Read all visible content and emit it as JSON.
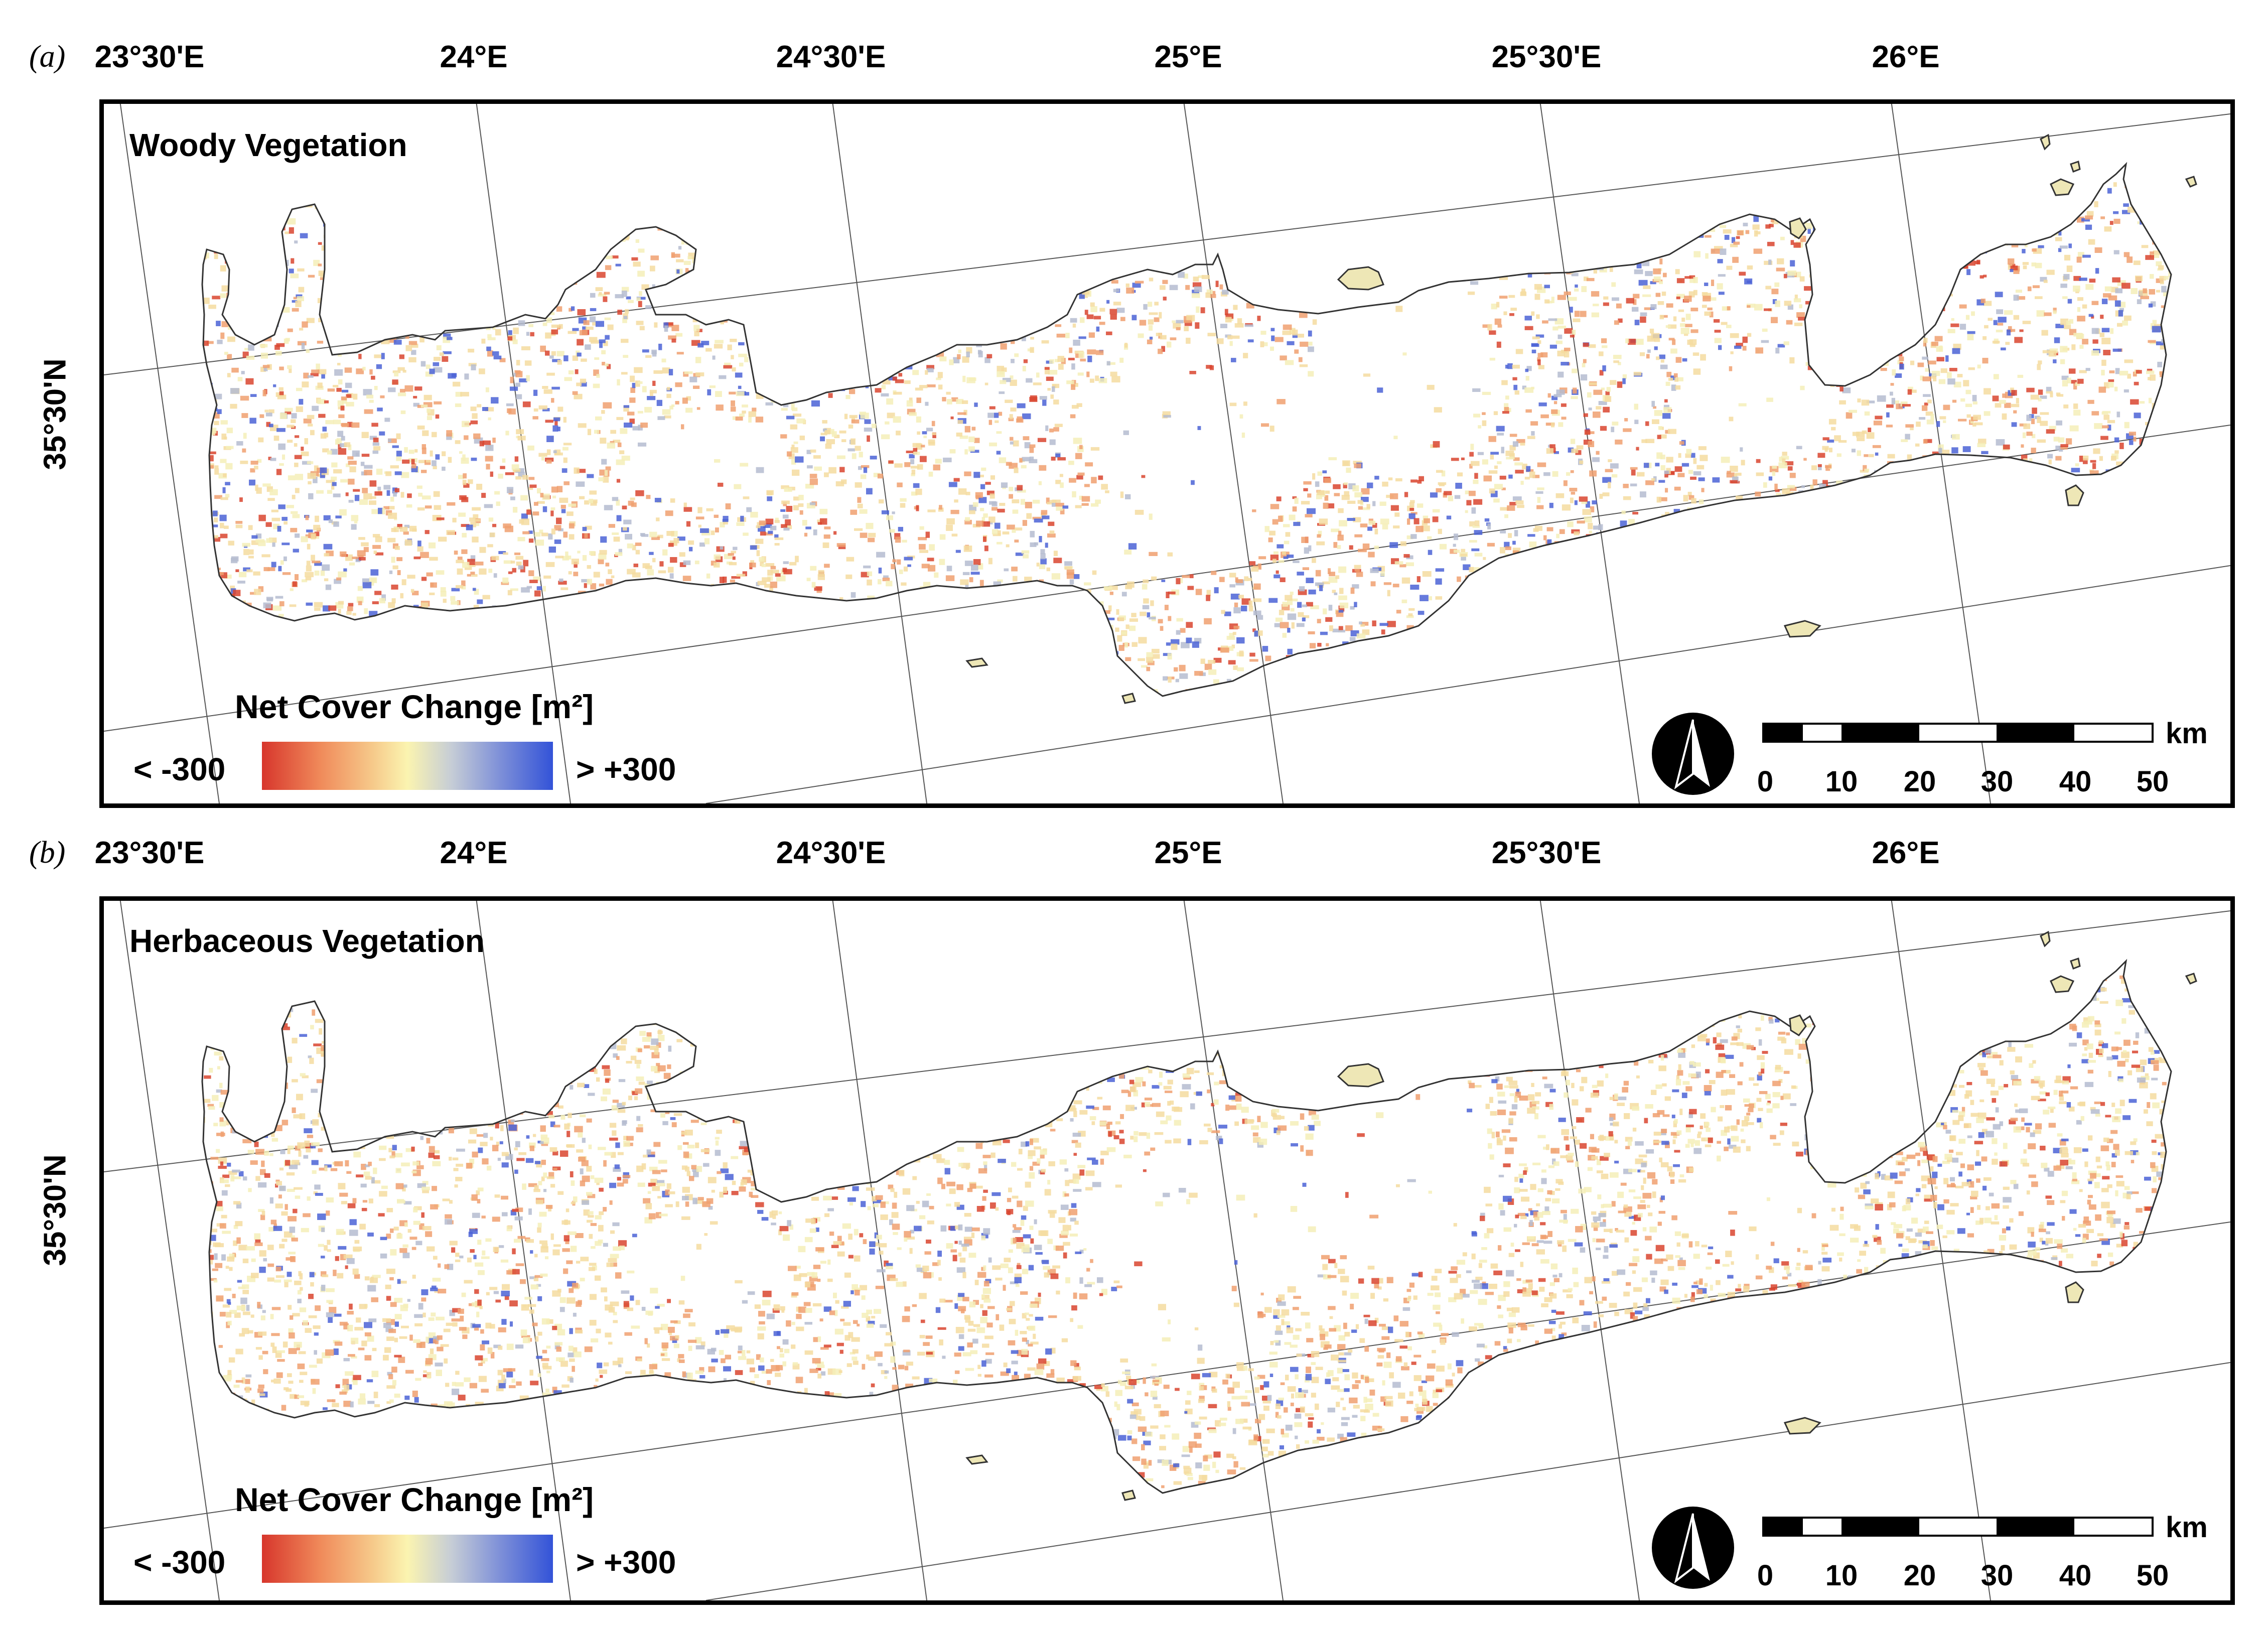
{
  "panels": [
    {
      "letter": "(a)",
      "title": "Woody Vegetation",
      "lon_labels": [
        "23°30'E",
        "24°E",
        "24°30'E",
        "25°E",
        "25°30'E",
        "26°E"
      ],
      "lat_label": "35°30'N",
      "legend": {
        "title": "Net Cover Change [m²]",
        "min_label": "< -300",
        "max_label": "> +300"
      },
      "scale": {
        "unit": "km",
        "ticks": [
          "0",
          "10",
          "20",
          "30",
          "40",
          "50"
        ]
      }
    },
    {
      "letter": "(b)",
      "title": "Herbaceous Vegetation",
      "lon_labels": [
        "23°30'E",
        "24°E",
        "24°30'E",
        "25°E",
        "25°30'E",
        "26°E"
      ],
      "lat_label": "35°30'N",
      "legend": {
        "title": "Net Cover Change [m²]",
        "min_label": "< -300",
        "max_label": "> +300"
      },
      "scale": {
        "unit": "km",
        "ticks": [
          "0",
          "10",
          "20",
          "30",
          "40",
          "50"
        ]
      }
    }
  ],
  "colors": {
    "negative": "#d7362c",
    "neutral": "#fbf4b0",
    "positive": "#3353d8"
  }
}
